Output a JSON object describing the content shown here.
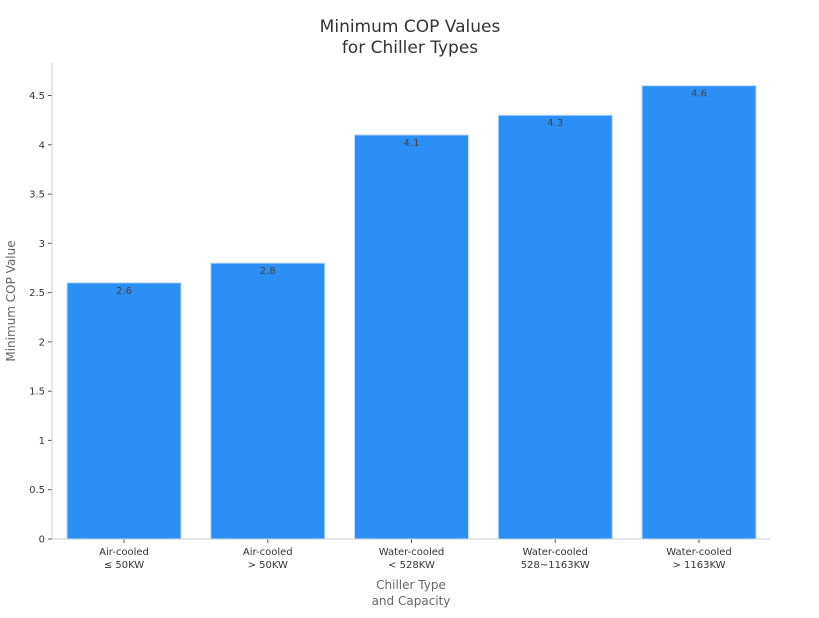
{
  "chart_data": {
    "type": "bar",
    "title_lines": [
      "Minimum COP Values",
      "for Chiller Types"
    ],
    "xlabel_lines": [
      "Chiller Type",
      "and Capacity"
    ],
    "ylabel": "Minimum COP Value",
    "categories": [
      [
        "Air-cooled",
        "≤ 50KW"
      ],
      [
        "Air-cooled",
        "> 50KW"
      ],
      [
        "Water-cooled",
        "< 528KW"
      ],
      [
        "Water-cooled",
        "528~1163KW"
      ],
      [
        "Water-cooled",
        "> 1163KW"
      ]
    ],
    "values": [
      2.6,
      2.8,
      4.1,
      4.3,
      4.6
    ],
    "data_labels": [
      "2.6",
      "2.8",
      "4.1",
      "4.3",
      "4.6"
    ],
    "yticks": [
      0,
      0.5,
      1,
      1.5,
      2,
      2.5,
      3,
      3.5,
      4,
      4.5
    ],
    "ytick_labels": [
      "0",
      "0.5",
      "1",
      "1.5",
      "2",
      "2.5",
      "3",
      "3.5",
      "4",
      "4.5"
    ],
    "ylim": [
      0,
      4.83
    ],
    "bar_color": "#2b8ff5",
    "grid": false,
    "legend": false
  }
}
